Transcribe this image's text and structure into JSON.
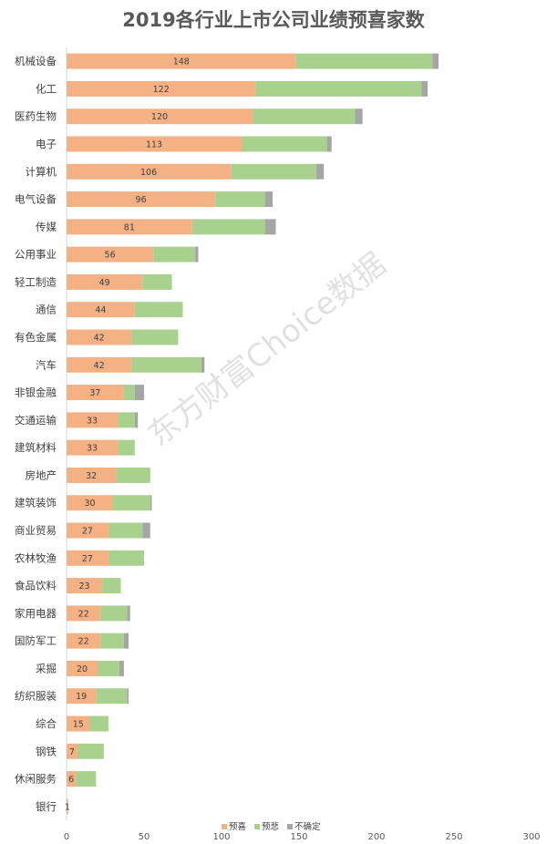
{
  "chart_data": {
    "type": "bar",
    "orientation": "horizontal",
    "stacked": true,
    "title": "2019各行业上市公司业绩预喜家数",
    "watermark": "东方财富Choice数据",
    "categories": [
      "机械设备",
      "化工",
      "医药生物",
      "电子",
      "计算机",
      "电气设备",
      "传媒",
      "公用事业",
      "轻工制造",
      "通信",
      "有色金属",
      "汽车",
      "非银金融",
      "交通运输",
      "建筑材料",
      "房地产",
      "建筑装饰",
      "商业贸易",
      "农林牧渔",
      "食品饮料",
      "家用电器",
      "国防军工",
      "采掘",
      "纺织服装",
      "综合",
      "钢铁",
      "休闲服务",
      "银行"
    ],
    "series": [
      {
        "name": "预喜",
        "color": "#F4B183",
        "values": [
          148,
          122,
          120,
          113,
          106,
          96,
          81,
          56,
          49,
          44,
          42,
          42,
          37,
          33,
          33,
          32,
          30,
          27,
          27,
          23,
          22,
          22,
          20,
          19,
          15,
          7,
          6,
          1
        ]
      },
      {
        "name": "预悲",
        "color": "#A9D18E",
        "values": [
          88,
          107,
          66,
          55,
          55,
          32,
          47,
          27,
          19,
          31,
          30,
          45,
          7,
          11,
          11,
          22,
          24,
          22,
          23,
          12,
          17,
          15,
          14,
          20,
          12,
          17,
          13,
          0
        ]
      },
      {
        "name": "不确定",
        "color": "#A5A5A5",
        "values": [
          4,
          4,
          5,
          3,
          5,
          5,
          7,
          2,
          0,
          0,
          0,
          2,
          6,
          2,
          0,
          0,
          1,
          5,
          0,
          0,
          2,
          3,
          3,
          1,
          0,
          0,
          0,
          0
        ]
      }
    ],
    "data_labels_series": "预喜",
    "xlim": [
      0,
      300
    ],
    "xticks": [
      0,
      50,
      100,
      150,
      200,
      250,
      300
    ],
    "grid": false,
    "legend_position": "bottom-center"
  }
}
